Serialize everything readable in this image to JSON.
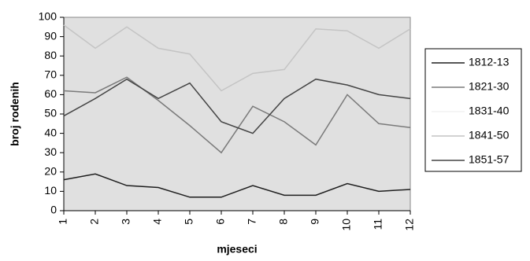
{
  "chart_data": {
    "type": "line",
    "x_label": "mjeseci",
    "y_label": "broj rodenih",
    "categories": [
      "1",
      "2",
      "3",
      "4",
      "5",
      "6",
      "7",
      "8",
      "9",
      "10",
      "11",
      "12"
    ],
    "series": [
      {
        "name": "1812-13",
        "color": "#1e1e1e",
        "values": [
          16,
          19,
          13,
          12,
          7,
          7,
          13,
          8,
          8,
          14,
          10,
          11
        ]
      },
      {
        "name": "1821-30",
        "color": "#7a7a7a",
        "values": [
          62,
          61,
          69,
          57,
          44,
          30,
          54,
          46,
          34,
          60,
          45,
          43
        ]
      },
      {
        "name": "1831-40",
        "color": "#f2f2f2",
        "values": [
          null,
          null,
          null,
          null,
          null,
          null,
          null,
          null,
          null,
          null,
          null,
          null
        ]
      },
      {
        "name": "1841-50",
        "color": "#c4c4c4",
        "values": [
          96,
          84,
          95,
          84,
          81,
          62,
          71,
          73,
          94,
          93,
          84,
          94
        ]
      },
      {
        "name": "1851-57",
        "color": "#444444",
        "values": [
          49,
          58,
          68,
          58,
          66,
          46,
          40,
          58,
          68,
          65,
          60,
          58
        ]
      }
    ],
    "ylim": [
      0,
      100
    ],
    "yticks": [
      0,
      10,
      20,
      30,
      40,
      50,
      60,
      70,
      80,
      90,
      100
    ],
    "plot_background": "#e0e0e0"
  }
}
